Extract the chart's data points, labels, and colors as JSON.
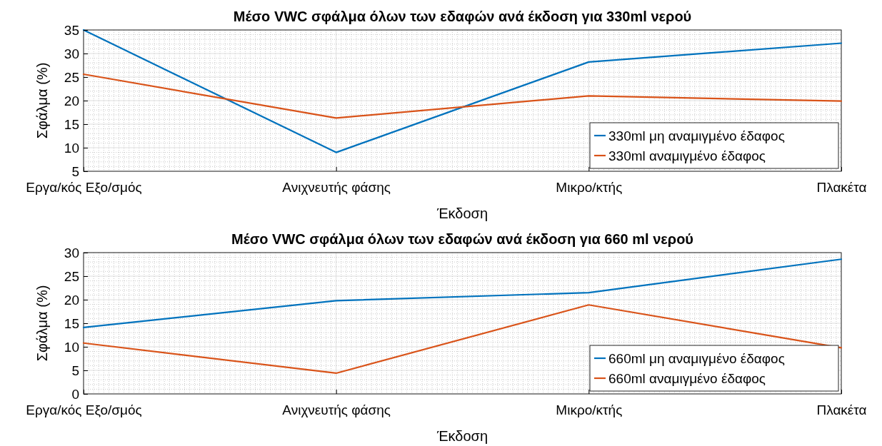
{
  "chart_data": [
    {
      "type": "line",
      "title": "Μέσο VWC σφάλμα όλων των εδαφών ανά έκδοση για 330ml νερού",
      "xlabel": "Έκδοση",
      "ylabel": "Σφάλμα (%)",
      "categories": [
        "Εργα/κός Εξο/σμός",
        "Ανιχνευτής φάσης",
        "Μικρο/κτής",
        "Πλακέτα"
      ],
      "series": [
        {
          "name": "330ml μη αναμιγμένο έδαφος",
          "color": "#0072bd",
          "values": [
            35,
            9,
            28.2,
            32.2
          ]
        },
        {
          "name": "330ml αναμιγμένο έδαφος",
          "color": "#d95319",
          "values": [
            25.6,
            16.3,
            21,
            19.9
          ]
        }
      ],
      "ylim": [
        5,
        35
      ],
      "yticks": [
        5,
        10,
        15,
        20,
        25,
        30,
        35
      ],
      "grid": true,
      "legend": "bottom right",
      "marker": "none",
      "line_style": "solid"
    },
    {
      "type": "line",
      "title": "Μέσο VWC σφάλμα όλων των εδαφών ανά έκδοση για 660 ml νερού",
      "xlabel": "Έκδοση",
      "ylabel": "Σφάλμα (%)",
      "categories": [
        "Εργα/κός Εξο/σμός",
        "Ανιχνευτής φάσης",
        "Μικρο/κτής",
        "Πλακέτα"
      ],
      "series": [
        {
          "name": "660ml μη αναμιγμένο έδαφος",
          "color": "#0072bd",
          "values": [
            14.1,
            19.8,
            21.5,
            28.6
          ]
        },
        {
          "name": "660ml αναμιγμένο έδαφος",
          "color": "#d95319",
          "values": [
            10.8,
            4.4,
            18.9,
            9.8
          ]
        }
      ],
      "ylim": [
        0,
        30
      ],
      "yticks": [
        0,
        5,
        10,
        15,
        20,
        25,
        30
      ],
      "grid": true,
      "legend": "bottom right",
      "marker": "none",
      "line_style": "solid"
    }
  ]
}
